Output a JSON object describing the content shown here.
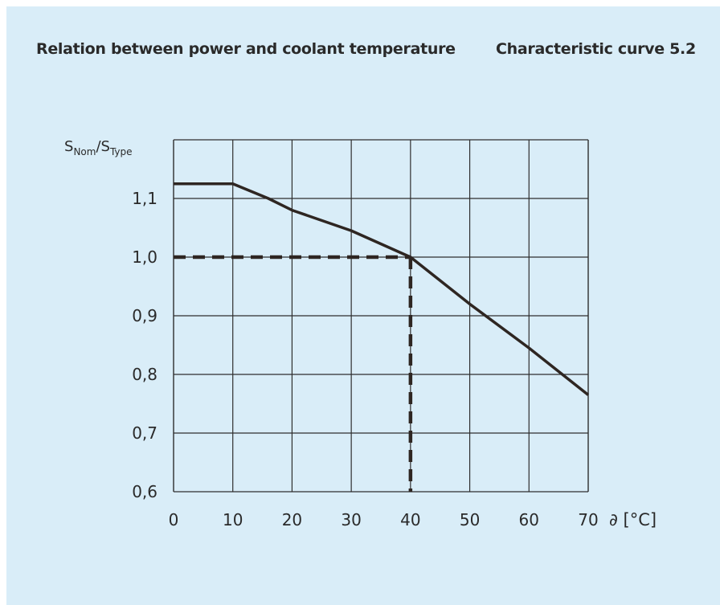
{
  "header": {
    "title": "Relation between power and coolant temperature",
    "figure_label": "Characteristic curve 5.2"
  },
  "colors": {
    "background": "#d9edf8",
    "grid": "#2e2e2e",
    "curve": "#2e2622",
    "text": "#2a2a2a"
  },
  "chart_data": {
    "type": "line",
    "title": "Relation between power and coolant temperature",
    "subtitle": "Characteristic curve 5.2",
    "ylabel": {
      "base1": "S",
      "sub1": "Nom",
      "sep": "/",
      "base2": "S",
      "sub2": "Type"
    },
    "xlabel": "∂ [°C]",
    "xlim": [
      0,
      70
    ],
    "ylim": [
      0.6,
      1.2
    ],
    "grid": true,
    "x_ticks": [
      "0",
      "10",
      "20",
      "30",
      "40",
      "50",
      "60",
      "70"
    ],
    "y_ticks": [
      {
        "value": 0.6,
        "label": "0,6"
      },
      {
        "value": 0.7,
        "label": "0,7"
      },
      {
        "value": 0.8,
        "label": "0,8"
      },
      {
        "value": 0.9,
        "label": "0,9"
      },
      {
        "value": 1.0,
        "label": "1,0"
      },
      {
        "value": 1.1,
        "label": "1,1"
      }
    ],
    "series": [
      {
        "x": [
          0,
          10,
          16,
          20,
          30,
          40,
          50,
          60,
          70
        ],
        "y": [
          1.125,
          1.125,
          1.1,
          1.08,
          1.045,
          1.0,
          0.92,
          0.845,
          0.765
        ]
      }
    ],
    "reference": {
      "x": 40,
      "y": 1.0,
      "style": "dashed"
    }
  }
}
